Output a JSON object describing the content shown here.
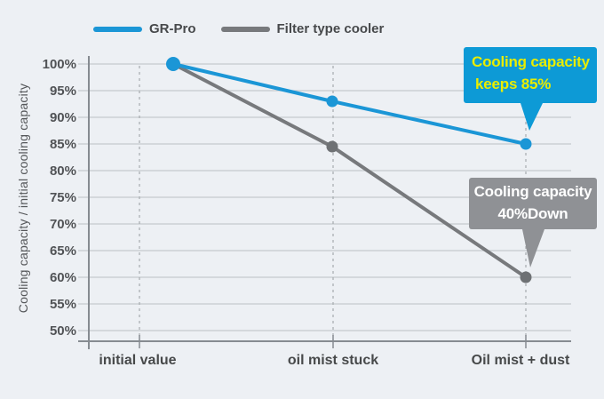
{
  "colors": {
    "background": "#edf0f4",
    "gridline": "#c5cacd",
    "axis": "#868b91",
    "dashed_guide": "#a6abae",
    "blue": "#1b96d6",
    "gray_line": "#77797c",
    "gray_dot": "#6e7174",
    "tick_label": "#515356",
    "x_label": "#47494a",
    "callout_blue_bg": "#0d9ad6",
    "callout_blue_text": "#e9ed00",
    "callout_gray_bg": "#8f9195",
    "callout_gray_text": "#ffffff"
  },
  "legend": {
    "items": [
      {
        "label": "GR-Pro",
        "color": "#1b96d6"
      },
      {
        "label": "Filter type cooler",
        "color": "#77797c"
      }
    ]
  },
  "chart_data": {
    "type": "line",
    "title": "",
    "xlabel": "",
    "ylabel": "Cooling capacity / initial cooling capacity",
    "categories": [
      "initial value",
      "oil mist stuck",
      "Oil mist + dust"
    ],
    "series": [
      {
        "name": "GR-Pro",
        "color": "#1b96d6",
        "values": [
          100,
          93,
          85
        ]
      },
      {
        "name": "Filter type cooler",
        "color": "#77797c",
        "values": [
          100,
          84.5,
          60
        ]
      }
    ],
    "y_ticks": [
      100,
      95,
      90,
      85,
      80,
      75,
      70,
      65,
      60,
      55,
      50
    ],
    "y_tick_suffix": "%",
    "ylim": [
      50,
      100
    ],
    "grid": true,
    "legend_position": "top-left",
    "guide_lines": "dashed vertical line at each category",
    "annotations": [
      {
        "id": "blue",
        "target_series": "GR-Pro",
        "target_category": "Oil mist + dust",
        "line1": "Cooling capacity",
        "line2": "keeps 85%"
      },
      {
        "id": "gray",
        "target_series": "Filter type cooler",
        "target_category": "Oil mist + dust",
        "line1": "Cooling capacity",
        "line2": "40%Down"
      }
    ]
  }
}
